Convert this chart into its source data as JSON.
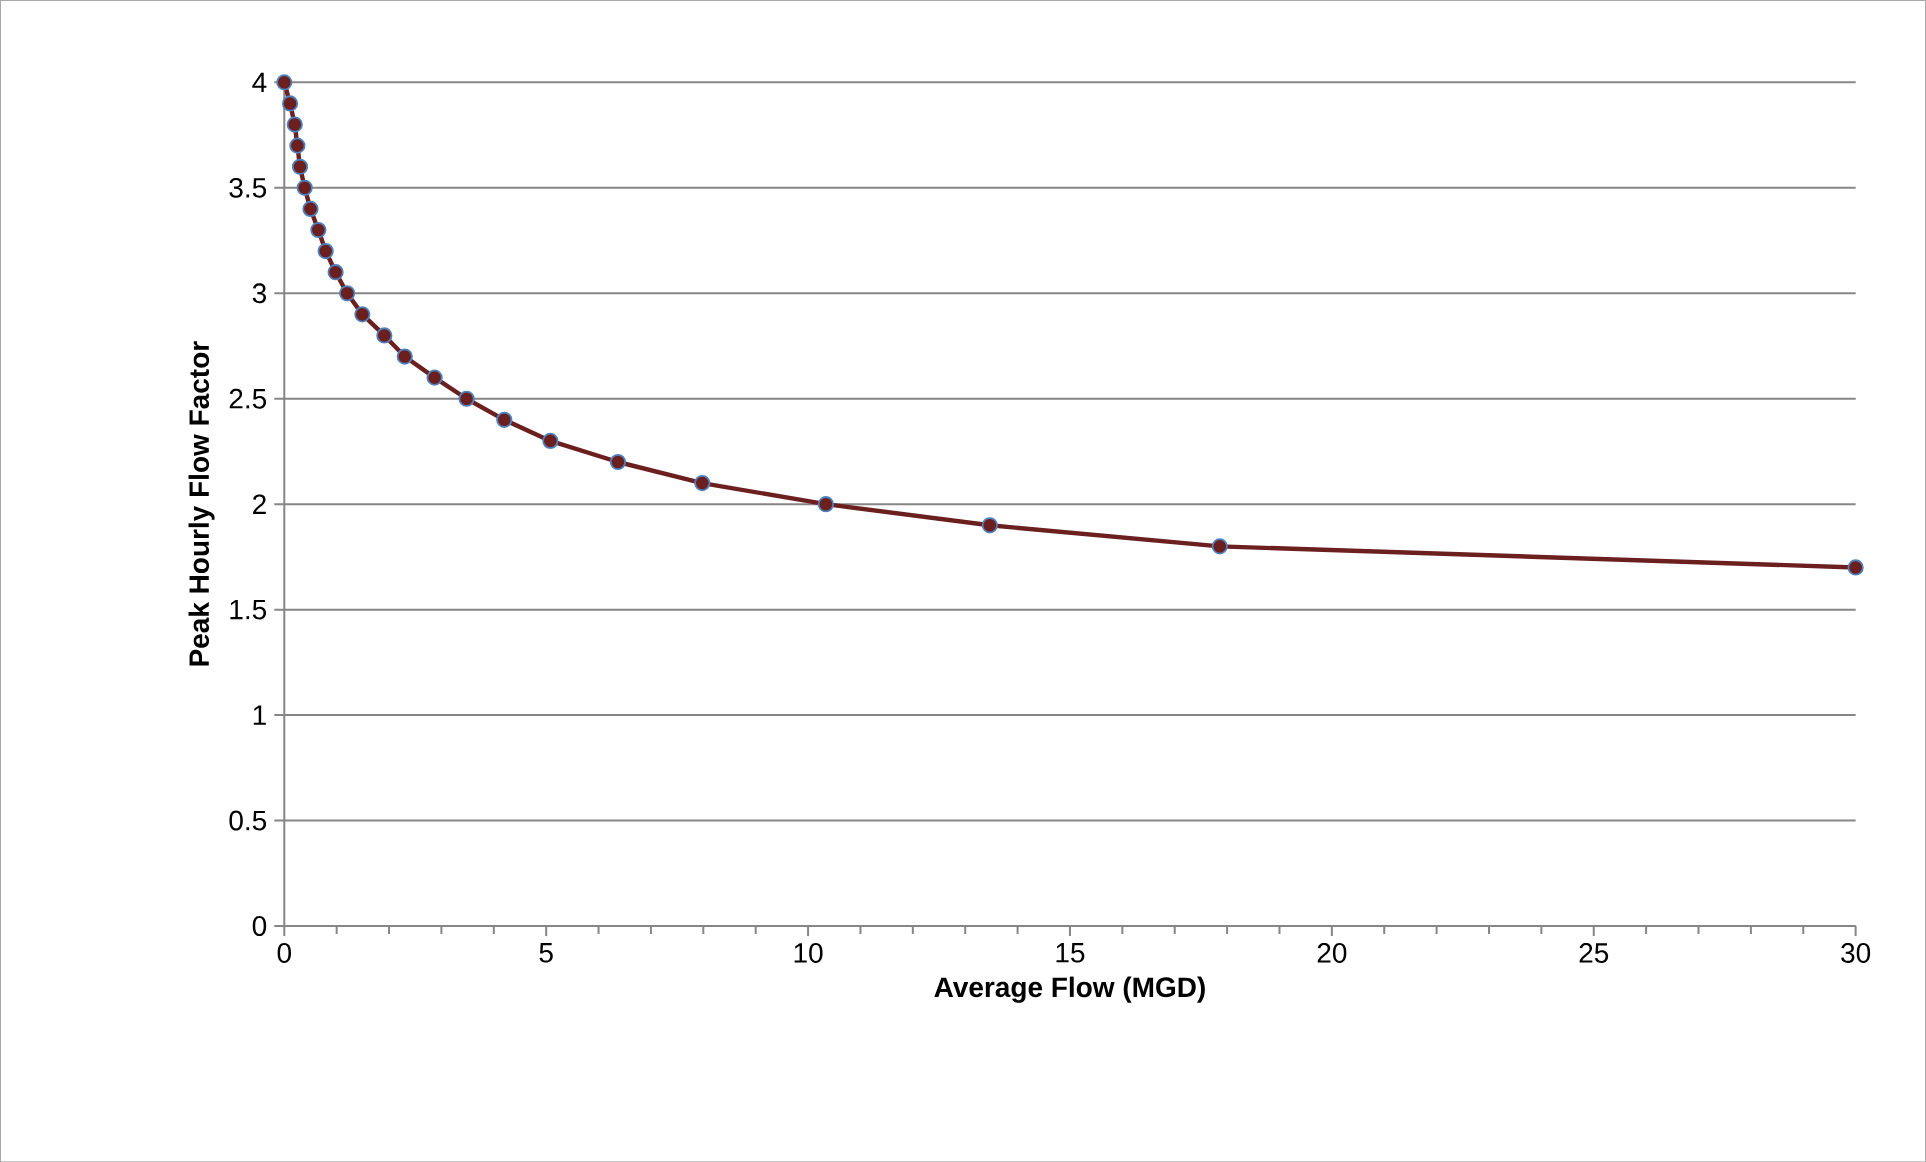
{
  "chart_data": {
    "type": "line",
    "xlabel": "Average Flow (MGD)",
    "ylabel": "Peak Hourly Flow Factor",
    "x": [
      0.0,
      0.11,
      0.2,
      0.25,
      0.3,
      0.39,
      0.5,
      0.65,
      0.79,
      0.98,
      1.2,
      1.49,
      1.91,
      2.3,
      2.87,
      3.48,
      4.2,
      5.08,
      6.37,
      7.98,
      10.34,
      13.47,
      17.86,
      30
    ],
    "series": [
      {
        "color": "#6b1f1f",
        "values": [
          4.0,
          3.9,
          3.8,
          3.7,
          3.6,
          3.5,
          3.4,
          3.3,
          3.2,
          3.1,
          3.0,
          2.9,
          2.8,
          2.7,
          2.6,
          2.5,
          2.4,
          2.3,
          2.2,
          2.1,
          2.0,
          1.9,
          1.8,
          1.7
        ]
      }
    ],
    "xlim": [
      0,
      30
    ],
    "xticks": [
      0,
      5,
      10,
      15,
      20,
      25,
      30
    ],
    "ylim": [
      0,
      4
    ],
    "yticks": [
      0,
      0.5,
      1,
      1.5,
      2,
      2.5,
      3,
      3.5,
      4
    ],
    "grid": "y",
    "marker": "circle",
    "line_style": "solid"
  }
}
